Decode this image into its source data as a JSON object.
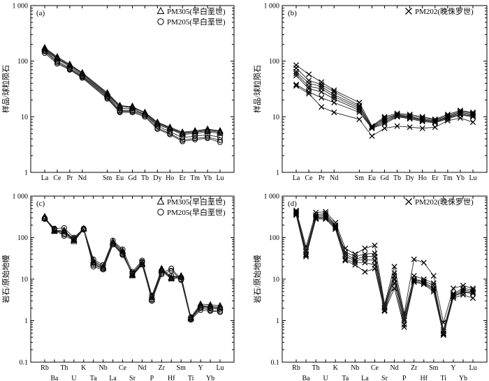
{
  "chart_data": [
    {
      "panel": "(a)",
      "type": "line",
      "ylabel": "样品/球粒陨石",
      "yscale": "log",
      "ylim": [
        1,
        1000
      ],
      "yticks": [
        "1",
        "10",
        "100",
        "1 000"
      ],
      "legend": [
        "PM305(早白垩世)",
        "PM205(早白垩世)"
      ],
      "legend_markers": [
        "triangle",
        "circle"
      ],
      "categories": [
        "La",
        "Ce",
        "Pr",
        "Nd",
        "Sm",
        "Eu",
        "Gd",
        "Tb",
        "Dy",
        "Ho",
        "Er",
        "Tm",
        "Yb",
        "Lu"
      ],
      "category_slots": [
        0,
        1,
        2,
        3,
        5,
        6,
        7,
        8,
        9,
        10,
        11,
        12,
        13,
        14
      ],
      "slot_count": 15,
      "series": [
        {
          "marker": "triangle",
          "values": [
            175,
            120,
            88,
            62,
            27,
            16,
            15,
            12,
            8,
            6.5,
            5.3,
            5.6,
            6.0,
            5.6
          ]
        },
        {
          "marker": "triangle",
          "values": [
            165,
            112,
            84,
            59,
            25,
            15,
            15.5,
            11.5,
            7.5,
            6.2,
            5.0,
            5.3,
            5.6,
            5.3
          ]
        },
        {
          "marker": "triangle",
          "values": [
            160,
            108,
            80,
            56,
            24,
            14,
            14,
            11,
            7.2,
            6.0,
            4.8,
            5.0,
            5.4,
            5.0
          ]
        },
        {
          "marker": "triangle",
          "values": [
            170,
            115,
            85,
            60,
            26,
            15.5,
            14.5,
            11.8,
            7.8,
            6.3,
            5.1,
            5.4,
            5.8,
            5.5
          ]
        },
        {
          "marker": "circle",
          "values": [
            150,
            95,
            72,
            52,
            22,
            12.5,
            12.5,
            10.5,
            6.3,
            5.0,
            3.8,
            4.1,
            4.3,
            3.8
          ]
        },
        {
          "marker": "circle",
          "values": [
            140,
            90,
            70,
            50,
            21,
            12,
            12,
            10,
            6.0,
            4.8,
            3.6,
            3.9,
            4.1,
            3.5
          ]
        },
        {
          "marker": "circle",
          "values": [
            155,
            100,
            75,
            54,
            23,
            13,
            13,
            11,
            6.8,
            5.4,
            4.2,
            4.5,
            4.7,
            4.3
          ]
        }
      ]
    },
    {
      "panel": "(b)",
      "type": "line",
      "ylabel": "样品/球粒陨石",
      "yscale": "log",
      "ylim": [
        1,
        1000
      ],
      "yticks": [
        "1",
        "10",
        "100",
        "1 000"
      ],
      "legend": [
        "PM202(晚侏罗世)"
      ],
      "legend_markers": [
        "x"
      ],
      "categories": [
        "La",
        "Ce",
        "Pr",
        "Nd",
        "Sm",
        "Eu",
        "Gd",
        "Tb",
        "Dy",
        "Ho",
        "Er",
        "Tm",
        "Yb",
        "Lu"
      ],
      "category_slots": [
        0,
        1,
        2,
        3,
        5,
        6,
        7,
        8,
        9,
        10,
        11,
        12,
        13,
        14
      ],
      "slot_count": 15,
      "series": [
        {
          "marker": "x",
          "values": [
            85,
            58,
            42,
            30,
            18,
            6.8,
            10,
            11.5,
            11,
            10,
            9,
            11,
            13,
            12
          ]
        },
        {
          "marker": "x",
          "values": [
            75,
            45,
            38,
            28,
            16,
            6.5,
            9.5,
            11,
            10.5,
            9.5,
            8.8,
            10.5,
            12.5,
            11.5
          ]
        },
        {
          "marker": "x",
          "values": [
            65,
            40,
            35,
            25,
            15,
            6.8,
            9,
            10.8,
            10,
            9,
            8.5,
            10,
            12,
            11
          ]
        },
        {
          "marker": "x",
          "values": [
            60,
            35,
            32,
            23,
            14,
            6.5,
            8.5,
            10.5,
            9.8,
            8.8,
            8.2,
            9.8,
            11.5,
            10.5
          ]
        },
        {
          "marker": "x",
          "values": [
            55,
            32,
            28,
            21,
            13,
            6.3,
            8,
            10.2,
            9.5,
            8.5,
            8,
            9.5,
            11,
            10.2
          ]
        },
        {
          "marker": "x",
          "values": [
            38,
            28,
            22,
            18,
            12,
            6.2,
            7.5,
            10,
            9.2,
            8.2,
            7.8,
            9.2,
            10.8,
            10
          ]
        },
        {
          "marker": "x",
          "values": [
            36,
            26,
            15,
            12,
            9,
            4.5,
            6.2,
            6.8,
            6.5,
            6.2,
            6.5,
            8.5,
            9.5,
            8
          ]
        }
      ]
    },
    {
      "panel": "(c)",
      "type": "line",
      "ylabel": "岩石/原始地幔",
      "yscale": "log",
      "ylim": [
        0.1,
        1000
      ],
      "yticks": [
        "0.1",
        "1",
        "10",
        "100",
        "1 000"
      ],
      "legend": [
        "PM305(早白垩世)",
        "PM205(早白垩世)"
      ],
      "legend_markers": [
        "triangle",
        "circle"
      ],
      "categories": [
        "Rb",
        "Ba",
        "Th",
        "U",
        "K",
        "Ta",
        "Nb",
        "La",
        "Ce",
        "Sr",
        "Nd",
        "P",
        "Zr",
        "Hf",
        "Sm",
        "Ti",
        "Y",
        "Yb",
        "Lu"
      ],
      "series": [
        {
          "marker": "triangle",
          "values": [
            320,
            145,
            150,
            90,
            165,
            28,
            20,
            80,
            48,
            12,
            22,
            3.5,
            18,
            11,
            12,
            1.2,
            2.5,
            2.4,
            2.3
          ]
        },
        {
          "marker": "triangle",
          "values": [
            300,
            140,
            145,
            85,
            160,
            26,
            19,
            75,
            45,
            13,
            24,
            3.8,
            17,
            10.5,
            11.5,
            1.15,
            2.3,
            2.2,
            2.1
          ]
        },
        {
          "marker": "triangle",
          "values": [
            290,
            150,
            140,
            80,
            160,
            24,
            18,
            70,
            42,
            12.5,
            23,
            3.2,
            16,
            10,
            11,
            1.1,
            2.2,
            2.1,
            2.0
          ]
        },
        {
          "marker": "circle",
          "values": [
            290,
            160,
            120,
            95,
            160,
            22,
            18,
            72,
            40,
            14,
            25,
            3.2,
            14,
            18,
            10,
            1.1,
            2.0,
            1.8,
            1.7
          ]
        },
        {
          "marker": "circle",
          "values": [
            280,
            155,
            110,
            88,
            155,
            20,
            17,
            68,
            38,
            13.5,
            26,
            3.0,
            13,
            16,
            9.5,
            1.05,
            1.8,
            1.7,
            1.6
          ]
        },
        {
          "marker": "circle",
          "values": [
            295,
            165,
            170,
            100,
            165,
            30,
            22,
            85,
            52,
            15,
            28,
            4.0,
            16,
            12,
            11,
            1.2,
            2.1,
            2.0,
            1.9
          ]
        }
      ]
    },
    {
      "panel": "(d)",
      "type": "line",
      "ylabel": "岩石/原始地幔",
      "yscale": "log",
      "ylim": [
        0.1,
        1000
      ],
      "yticks": [
        "0.1",
        "1",
        "10",
        "100",
        "1 000"
      ],
      "legend": [
        "PM202(晚侏罗世)"
      ],
      "legend_markers": [
        "x"
      ],
      "categories": [
        "Rb",
        "Ba",
        "Th",
        "U",
        "K",
        "Ta",
        "Nb",
        "La",
        "Ce",
        "Sr",
        "Nd",
        "P",
        "Zr",
        "Hf",
        "Sm",
        "Ti",
        "Y",
        "Yb",
        "Lu"
      ],
      "series": [
        {
          "marker": "x",
          "values": [
            450,
            60,
            400,
            420,
            230,
            55,
            40,
            55,
            65,
            2.5,
            20,
            1.5,
            30,
            25,
            12,
            0.9,
            6,
            7,
            6
          ]
        },
        {
          "marker": "x",
          "values": [
            420,
            50,
            350,
            380,
            200,
            45,
            35,
            40,
            42,
            2.3,
            14,
            1.3,
            12,
            10,
            8,
            0.6,
            4.5,
            6,
            5.5
          ]
        },
        {
          "marker": "x",
          "values": [
            400,
            45,
            320,
            350,
            190,
            40,
            30,
            35,
            35,
            2.1,
            12,
            1.1,
            10,
            9,
            7,
            0.55,
            4.2,
            5.5,
            5
          ]
        },
        {
          "marker": "x",
          "values": [
            380,
            40,
            300,
            320,
            180,
            35,
            28,
            30,
            28,
            2.0,
            10,
            1.0,
            9.5,
            8.5,
            6,
            0.5,
            4.0,
            5,
            4.8
          ]
        },
        {
          "marker": "x",
          "values": [
            360,
            38,
            290,
            300,
            170,
            30,
            25,
            25,
            22,
            1.8,
            8,
            0.8,
            9,
            8,
            5.5,
            0.48,
            3.8,
            4.8,
            4.5
          ]
        },
        {
          "marker": "x",
          "values": [
            350,
            35,
            280,
            280,
            160,
            28,
            22,
            15,
            18,
            1.7,
            6,
            0.7,
            8.5,
            7.5,
            5,
            0.45,
            3.5,
            4.2,
            3.5
          ]
        }
      ]
    }
  ]
}
